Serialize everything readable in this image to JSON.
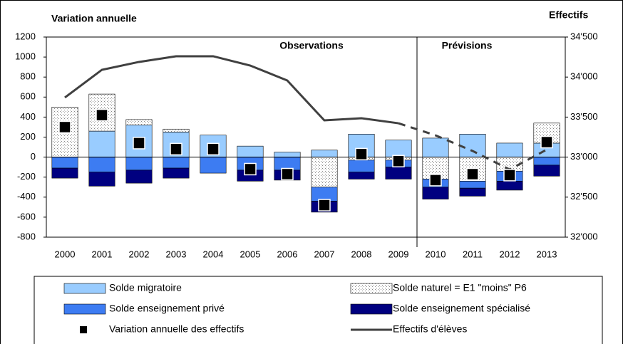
{
  "chart_data": {
    "type": "bar",
    "title": "Variation annuelle",
    "y2_title": "Effectifs",
    "annotations": [
      "Observations",
      "Prévisions"
    ],
    "forecast_start": "2010",
    "categories": [
      "2000",
      "2001",
      "2002",
      "2003",
      "2004",
      "2005",
      "2006",
      "2007",
      "2008",
      "2009",
      "2010",
      "2011",
      "2012",
      "2013"
    ],
    "series": [
      {
        "name": "Solde migratoire",
        "kind": "bar",
        "color": "#99ccff",
        "values": [
          0,
          260,
          320,
          250,
          220,
          110,
          50,
          70,
          230,
          170,
          190,
          230,
          140,
          140
        ]
      },
      {
        "name": "Solde naturel = E1 \"moins\" P6",
        "kind": "bar",
        "color": "#ffffff",
        "pattern": "dotted",
        "values": [
          500,
          370,
          55,
          30,
          0,
          0,
          0,
          -300,
          -30,
          -30,
          -220,
          -240,
          -140,
          200
        ]
      },
      {
        "name": "Solde enseignement privé",
        "kind": "bar",
        "color": "#3d7cf2",
        "values": [
          -110,
          -150,
          -130,
          -110,
          -160,
          -130,
          -130,
          -140,
          -120,
          -70,
          -80,
          -70,
          -100,
          -80
        ]
      },
      {
        "name": "Solde enseignement spécialisé",
        "kind": "bar",
        "color": "#000080",
        "values": [
          -100,
          -140,
          -130,
          -100,
          0,
          -110,
          -100,
          -110,
          -70,
          -120,
          -120,
          -80,
          -90,
          -110
        ]
      },
      {
        "name": "Variation annuelle des effectifs",
        "kind": "marker",
        "color": "#000000",
        "values": [
          300,
          420,
          140,
          80,
          80,
          -120,
          -170,
          -480,
          30,
          -40,
          -230,
          -170,
          -180,
          150
        ]
      },
      {
        "name": "Effectifs d'élèves",
        "kind": "line",
        "axis": "y2",
        "color": "#404040",
        "values": [
          33744,
          34091,
          34189,
          34260,
          34260,
          34144,
          33957,
          33459,
          33486,
          33423,
          33272,
          33077,
          32845,
          33094
        ]
      }
    ],
    "ylim": [
      -800,
      1200
    ],
    "yticks": [
      -800,
      -600,
      -400,
      -200,
      0,
      200,
      400,
      600,
      800,
      1000,
      1200
    ],
    "y2lim": [
      32000,
      34500
    ],
    "y2ticks": [
      {
        "value": 32000,
        "label": "32'000"
      },
      {
        "value": 32500,
        "label": "32'500"
      },
      {
        "value": 33000,
        "label": "33'000"
      },
      {
        "value": 33500,
        "label": "33'500"
      },
      {
        "value": 34000,
        "label": "34'000"
      },
      {
        "value": 34500,
        "label": "34'500"
      }
    ],
    "legend": "bottom"
  }
}
